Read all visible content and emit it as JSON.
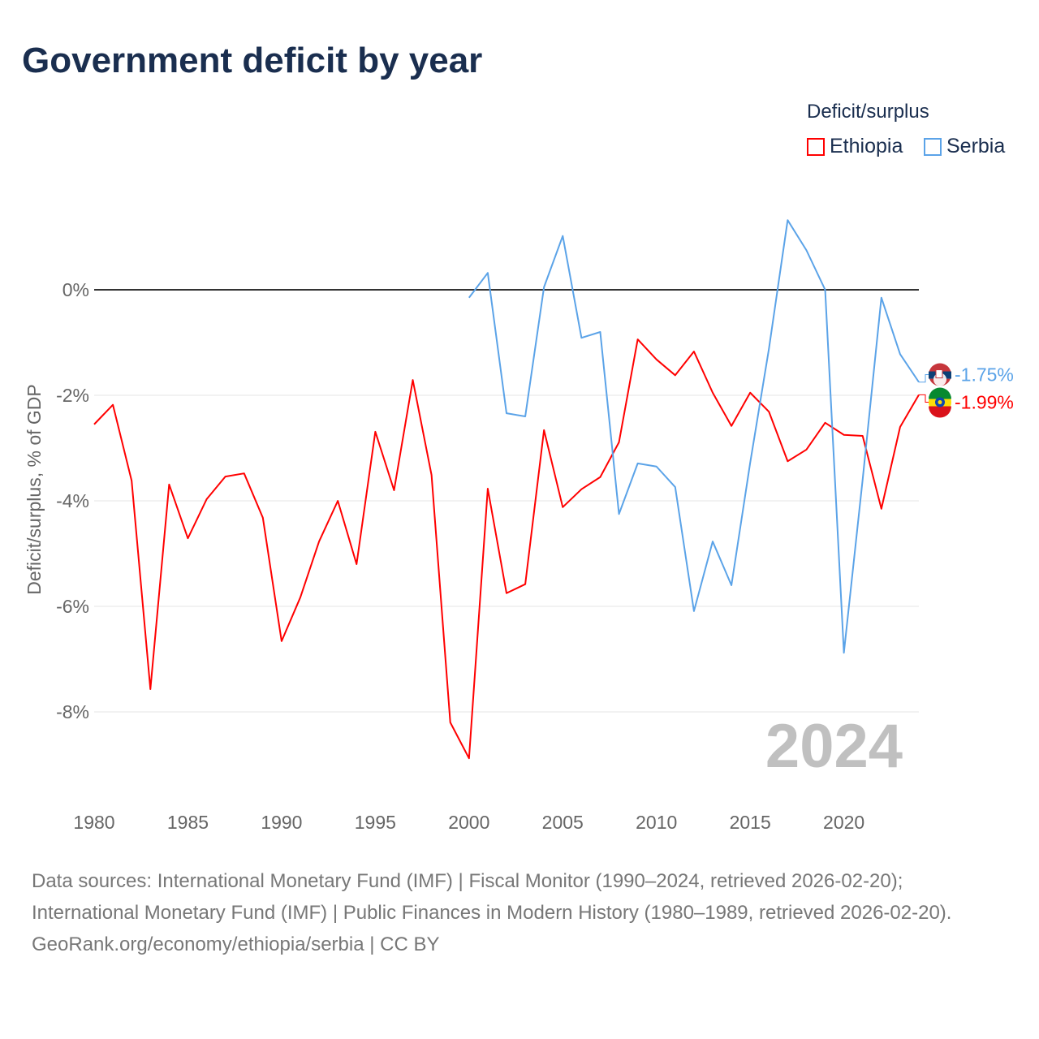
{
  "title": "Government deficit by year",
  "legend": {
    "title": "Deficit/surplus",
    "items": [
      {
        "name": "Ethiopia",
        "color": "#ff0000"
      },
      {
        "name": "Serbia",
        "color": "#5ba3e8"
      }
    ]
  },
  "footer": {
    "sources": "Data sources: International Monetary Fund (IMF) | Fiscal Monitor (1990–2024, retrieved 2026-02-20); International Monetary Fund (IMF) | Public Finances in Modern History (1980–1989, retrieved 2026-02-20).",
    "credit": "GeoRank.org/economy/ethiopia/serbia | CC BY"
  },
  "chart_data": {
    "type": "line",
    "title": "Government deficit by year",
    "xlabel": "",
    "ylabel": "Deficit/surplus, % of GDP",
    "xlim": [
      1980,
      2024
    ],
    "ylim": [
      -9.5,
      1.5
    ],
    "x_ticks": [
      1980,
      1985,
      1990,
      1995,
      2000,
      2005,
      2010,
      2015,
      2020
    ],
    "y_ticks": [
      0,
      -2,
      -4,
      -6,
      -8
    ],
    "y_tick_labels": [
      "0%",
      "-2%",
      "-4%",
      "-6%",
      "-8%"
    ],
    "year_watermark": "2024",
    "series": [
      {
        "name": "Ethiopia",
        "color": "#ff0000",
        "end_label": "-1.99%",
        "start": 1980,
        "values": [
          -2.55,
          -2.18,
          -3.62,
          -7.57,
          -3.69,
          -4.71,
          -3.97,
          -3.54,
          -3.48,
          -4.32,
          -6.66,
          -5.83,
          -4.77,
          -4.0,
          -5.2,
          -2.69,
          -3.8,
          -1.71,
          -3.51,
          -8.2,
          -8.88,
          -3.77,
          -5.75,
          -5.58,
          -2.66,
          -4.12,
          -3.78,
          -3.55,
          -2.89,
          -0.94,
          -1.32,
          -1.62,
          -1.17,
          -1.95,
          -2.58,
          -1.95,
          -2.31,
          -3.25,
          -3.03,
          -2.52,
          -2.75,
          -2.77,
          -4.15,
          -2.6,
          -1.99
        ]
      },
      {
        "name": "Serbia",
        "color": "#5ba3e8",
        "end_label": "-1.75%",
        "start": 2000,
        "values": [
          -0.15,
          0.32,
          -2.34,
          -2.4,
          0.05,
          1.02,
          -0.91,
          -0.8,
          -4.25,
          -3.29,
          -3.35,
          -3.74,
          -6.09,
          -4.77,
          -5.6,
          -3.28,
          -1.12,
          1.32,
          0.75,
          0.0,
          -6.88,
          -3.6,
          -0.15,
          -1.22,
          -1.75
        ]
      }
    ]
  }
}
